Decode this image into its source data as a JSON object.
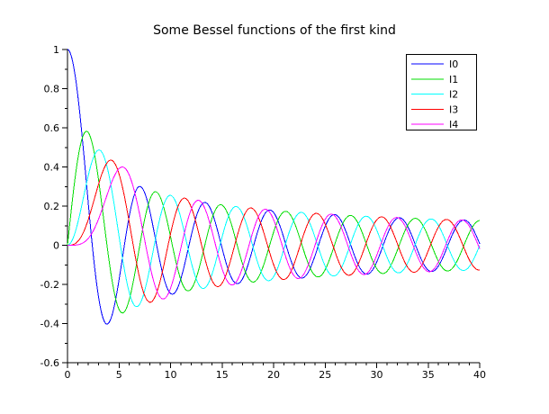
{
  "window": {
    "background": "#ffffff"
  },
  "chart_data": {
    "type": "line",
    "title": "Some Bessel functions of the first kind",
    "xlabel": "",
    "ylabel": "",
    "x_range": [
      0,
      40
    ],
    "y_range": [
      -0.6,
      1.0
    ],
    "x_major_tick_step": 5,
    "x_minor_tick_step": 1,
    "y_major_tick_step": 0.2,
    "y_minor_tick_step": 0.1,
    "x_tick_labels": [
      "0",
      "5",
      "10",
      "15",
      "20",
      "25",
      "30",
      "35",
      "40"
    ],
    "y_tick_labels": [
      "1",
      "0.8",
      "0.6",
      "0.4",
      "0.2",
      "0",
      "-0.2",
      "-0.4",
      "-0.6"
    ],
    "grid": false,
    "axis_color": "#000000",
    "series": [
      {
        "name": "I0",
        "function": "besselJ",
        "order": 0,
        "color": "#0000ff"
      },
      {
        "name": "I1",
        "function": "besselJ",
        "order": 1,
        "color": "#00dd00"
      },
      {
        "name": "I2",
        "function": "besselJ",
        "order": 2,
        "color": "#00ffff"
      },
      {
        "name": "I3",
        "function": "besselJ",
        "order": 3,
        "color": "#ff0000"
      },
      {
        "name": "I4",
        "function": "besselJ",
        "order": 4,
        "color": "#ff00ff"
      }
    ],
    "sampling": {
      "x_start": 0,
      "x_end": 40,
      "points": 801
    },
    "legend": {
      "position": "top-right",
      "border_color": "#000000",
      "background": "#ffffff",
      "labels": [
        "I0",
        "I1",
        "I2",
        "I3",
        "I4"
      ]
    }
  }
}
